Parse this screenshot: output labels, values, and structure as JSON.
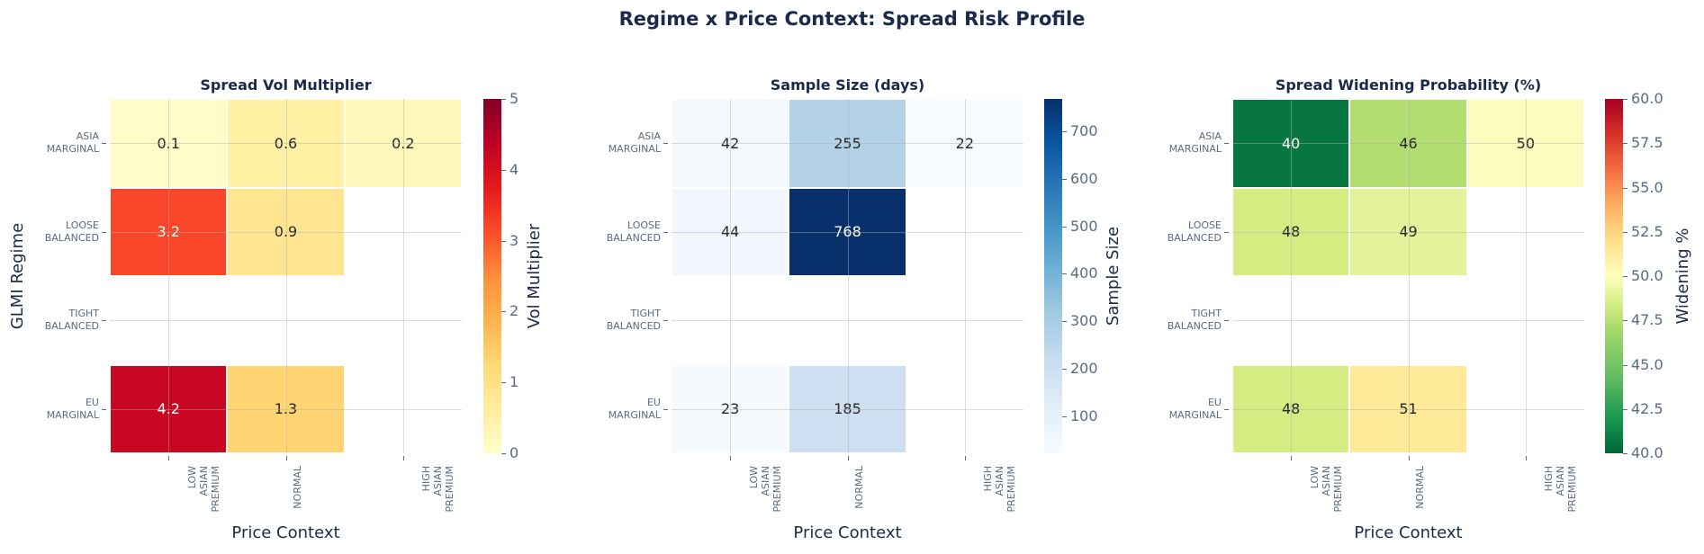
{
  "title": "Regime x Price Context: Spread Risk Profile",
  "rows": [
    "ASIA\nMARGINAL",
    "LOOSE\nBALANCED",
    "TIGHT\nBALANCED",
    "EU\nMARGINAL"
  ],
  "cols": [
    "LOW\nASIAN\nPREMIUM",
    "NORMAL",
    "HIGH\nASIAN\nPREMIUM"
  ],
  "panels": [
    {
      "title": "Spread Vol Multiplier",
      "ylabel": "GLMI Regime",
      "xlabel": "Price Context",
      "cbar_label": "Vol Multiplier",
      "cbar_ticks": [
        "0",
        "1",
        "2",
        "3",
        "4",
        "5"
      ],
      "cells": [
        [
          {
            "text": "0.1",
            "bg": "#fffcc8",
            "fg": "#262626"
          },
          {
            "text": "0.6",
            "bg": "#fff0a4",
            "fg": "#262626"
          },
          {
            "text": "0.2",
            "bg": "#fff8bb",
            "fg": "#262626"
          }
        ],
        [
          {
            "text": "3.2",
            "bg": "#f9462b",
            "fg": "#ffffff"
          },
          {
            "text": "0.9",
            "bg": "#ffe590",
            "fg": "#262626"
          },
          {
            "text": "",
            "bg": "",
            "fg": ""
          }
        ],
        [
          {
            "text": "",
            "bg": "",
            "fg": ""
          },
          {
            "text": "",
            "bg": "",
            "fg": ""
          },
          {
            "text": "",
            "bg": "",
            "fg": ""
          }
        ],
        [
          {
            "text": "4.2",
            "bg": "#c80823",
            "fg": "#ffffff"
          },
          {
            "text": "1.3",
            "bg": "#fed572",
            "fg": "#262626"
          },
          {
            "text": "",
            "bg": "",
            "fg": ""
          }
        ]
      ]
    },
    {
      "title": "Sample Size (days)",
      "ylabel": "",
      "xlabel": "Price Context",
      "cbar_label": "Sample Size",
      "cbar_ticks": [
        "100",
        "200",
        "300",
        "400",
        "500",
        "600",
        "700"
      ],
      "cells": [
        [
          {
            "text": "42",
            "bg": "#f4f9fe",
            "fg": "#262626"
          },
          {
            "text": "255",
            "bg": "#b3d2e8",
            "fg": "#262626"
          },
          {
            "text": "22",
            "bg": "#f7fbff",
            "fg": "#262626"
          }
        ],
        [
          {
            "text": "44",
            "bg": "#f1f7fd",
            "fg": "#262626"
          },
          {
            "text": "768",
            "bg": "#08306b",
            "fg": "#ffffff"
          },
          {
            "text": "",
            "bg": "",
            "fg": ""
          }
        ],
        [
          {
            "text": "",
            "bg": "",
            "fg": ""
          },
          {
            "text": "",
            "bg": "",
            "fg": ""
          },
          {
            "text": "",
            "bg": "",
            "fg": ""
          }
        ],
        [
          {
            "text": "23",
            "bg": "#f6faff",
            "fg": "#262626"
          },
          {
            "text": "185",
            "bg": "#cddff1",
            "fg": "#262626"
          },
          {
            "text": "",
            "bg": "",
            "fg": ""
          }
        ]
      ]
    },
    {
      "title": "Spread Widening Probability (%)",
      "ylabel": "",
      "xlabel": "Price Context",
      "cbar_label": "Widening %",
      "cbar_ticks": [
        "40.0",
        "42.5",
        "45.0",
        "47.5",
        "50.0",
        "52.5",
        "55.0",
        "57.5",
        "60.0"
      ],
      "cells": [
        [
          {
            "text": "40",
            "bg": "#087640",
            "fg": "#ffffff"
          },
          {
            "text": "46",
            "bg": "#b1dd71",
            "fg": "#262626"
          },
          {
            "text": "50",
            "bg": "#fefcbc",
            "fg": "#262626"
          }
        ],
        [
          {
            "text": "48",
            "bg": "#d4ec81",
            "fg": "#262626"
          },
          {
            "text": "49",
            "bg": "#e4f39a",
            "fg": "#262626"
          },
          {
            "text": "",
            "bg": "",
            "fg": ""
          }
        ],
        [
          {
            "text": "",
            "bg": "",
            "fg": ""
          },
          {
            "text": "",
            "bg": "",
            "fg": ""
          },
          {
            "text": "",
            "bg": "",
            "fg": ""
          }
        ],
        [
          {
            "text": "48",
            "bg": "#d4ec81",
            "fg": "#262626"
          },
          {
            "text": "51",
            "bg": "#fee999",
            "fg": "#262626"
          },
          {
            "text": "",
            "bg": "",
            "fg": ""
          }
        ]
      ]
    }
  ],
  "chart_data": [
    {
      "type": "heatmap",
      "title": "Spread Vol Multiplier",
      "xlabel": "Price Context",
      "ylabel": "GLMI Regime",
      "x": [
        "LOW ASIAN PREMIUM",
        "NORMAL",
        "HIGH ASIAN PREMIUM"
      ],
      "y": [
        "ASIA MARGINAL",
        "LOOSE BALANCED",
        "TIGHT BALANCED",
        "EU MARGINAL"
      ],
      "values": [
        [
          0.1,
          0.6,
          0.2
        ],
        [
          3.2,
          0.9,
          null
        ],
        [
          null,
          null,
          null
        ],
        [
          4.2,
          1.3,
          null
        ]
      ],
      "colormap": "YlOrRd",
      "colorbar": {
        "label": "Vol Multiplier",
        "range": [
          0,
          5
        ],
        "ticks": [
          0,
          1,
          2,
          3,
          4,
          5
        ]
      },
      "grid": true
    },
    {
      "type": "heatmap",
      "title": "Sample Size (days)",
      "xlabel": "Price Context",
      "ylabel": "",
      "x": [
        "LOW ASIAN PREMIUM",
        "NORMAL",
        "HIGH ASIAN PREMIUM"
      ],
      "y": [
        "ASIA MARGINAL",
        "LOOSE BALANCED",
        "TIGHT BALANCED",
        "EU MARGINAL"
      ],
      "values": [
        [
          42,
          255,
          22
        ],
        [
          44,
          768,
          null
        ],
        [
          null,
          null,
          null
        ],
        [
          23,
          185,
          null
        ]
      ],
      "colormap": "Blues",
      "colorbar": {
        "label": "Sample Size",
        "range": [
          22,
          768
        ],
        "ticks": [
          100,
          200,
          300,
          400,
          500,
          600,
          700
        ]
      },
      "grid": true
    },
    {
      "type": "heatmap",
      "title": "Spread Widening Probability (%)",
      "xlabel": "Price Context",
      "ylabel": "",
      "x": [
        "LOW ASIAN PREMIUM",
        "NORMAL",
        "HIGH ASIAN PREMIUM"
      ],
      "y": [
        "ASIA MARGINAL",
        "LOOSE BALANCED",
        "TIGHT BALANCED",
        "EU MARGINAL"
      ],
      "values": [
        [
          40,
          46,
          50
        ],
        [
          48,
          49,
          null
        ],
        [
          null,
          null,
          null
        ],
        [
          48,
          51,
          null
        ]
      ],
      "colormap": "RdYlGn_r",
      "colorbar": {
        "label": "Widening %",
        "range": [
          40,
          60
        ],
        "ticks": [
          40.0,
          42.5,
          45.0,
          47.5,
          50.0,
          52.5,
          55.0,
          57.5,
          60.0
        ]
      },
      "grid": true
    }
  ]
}
